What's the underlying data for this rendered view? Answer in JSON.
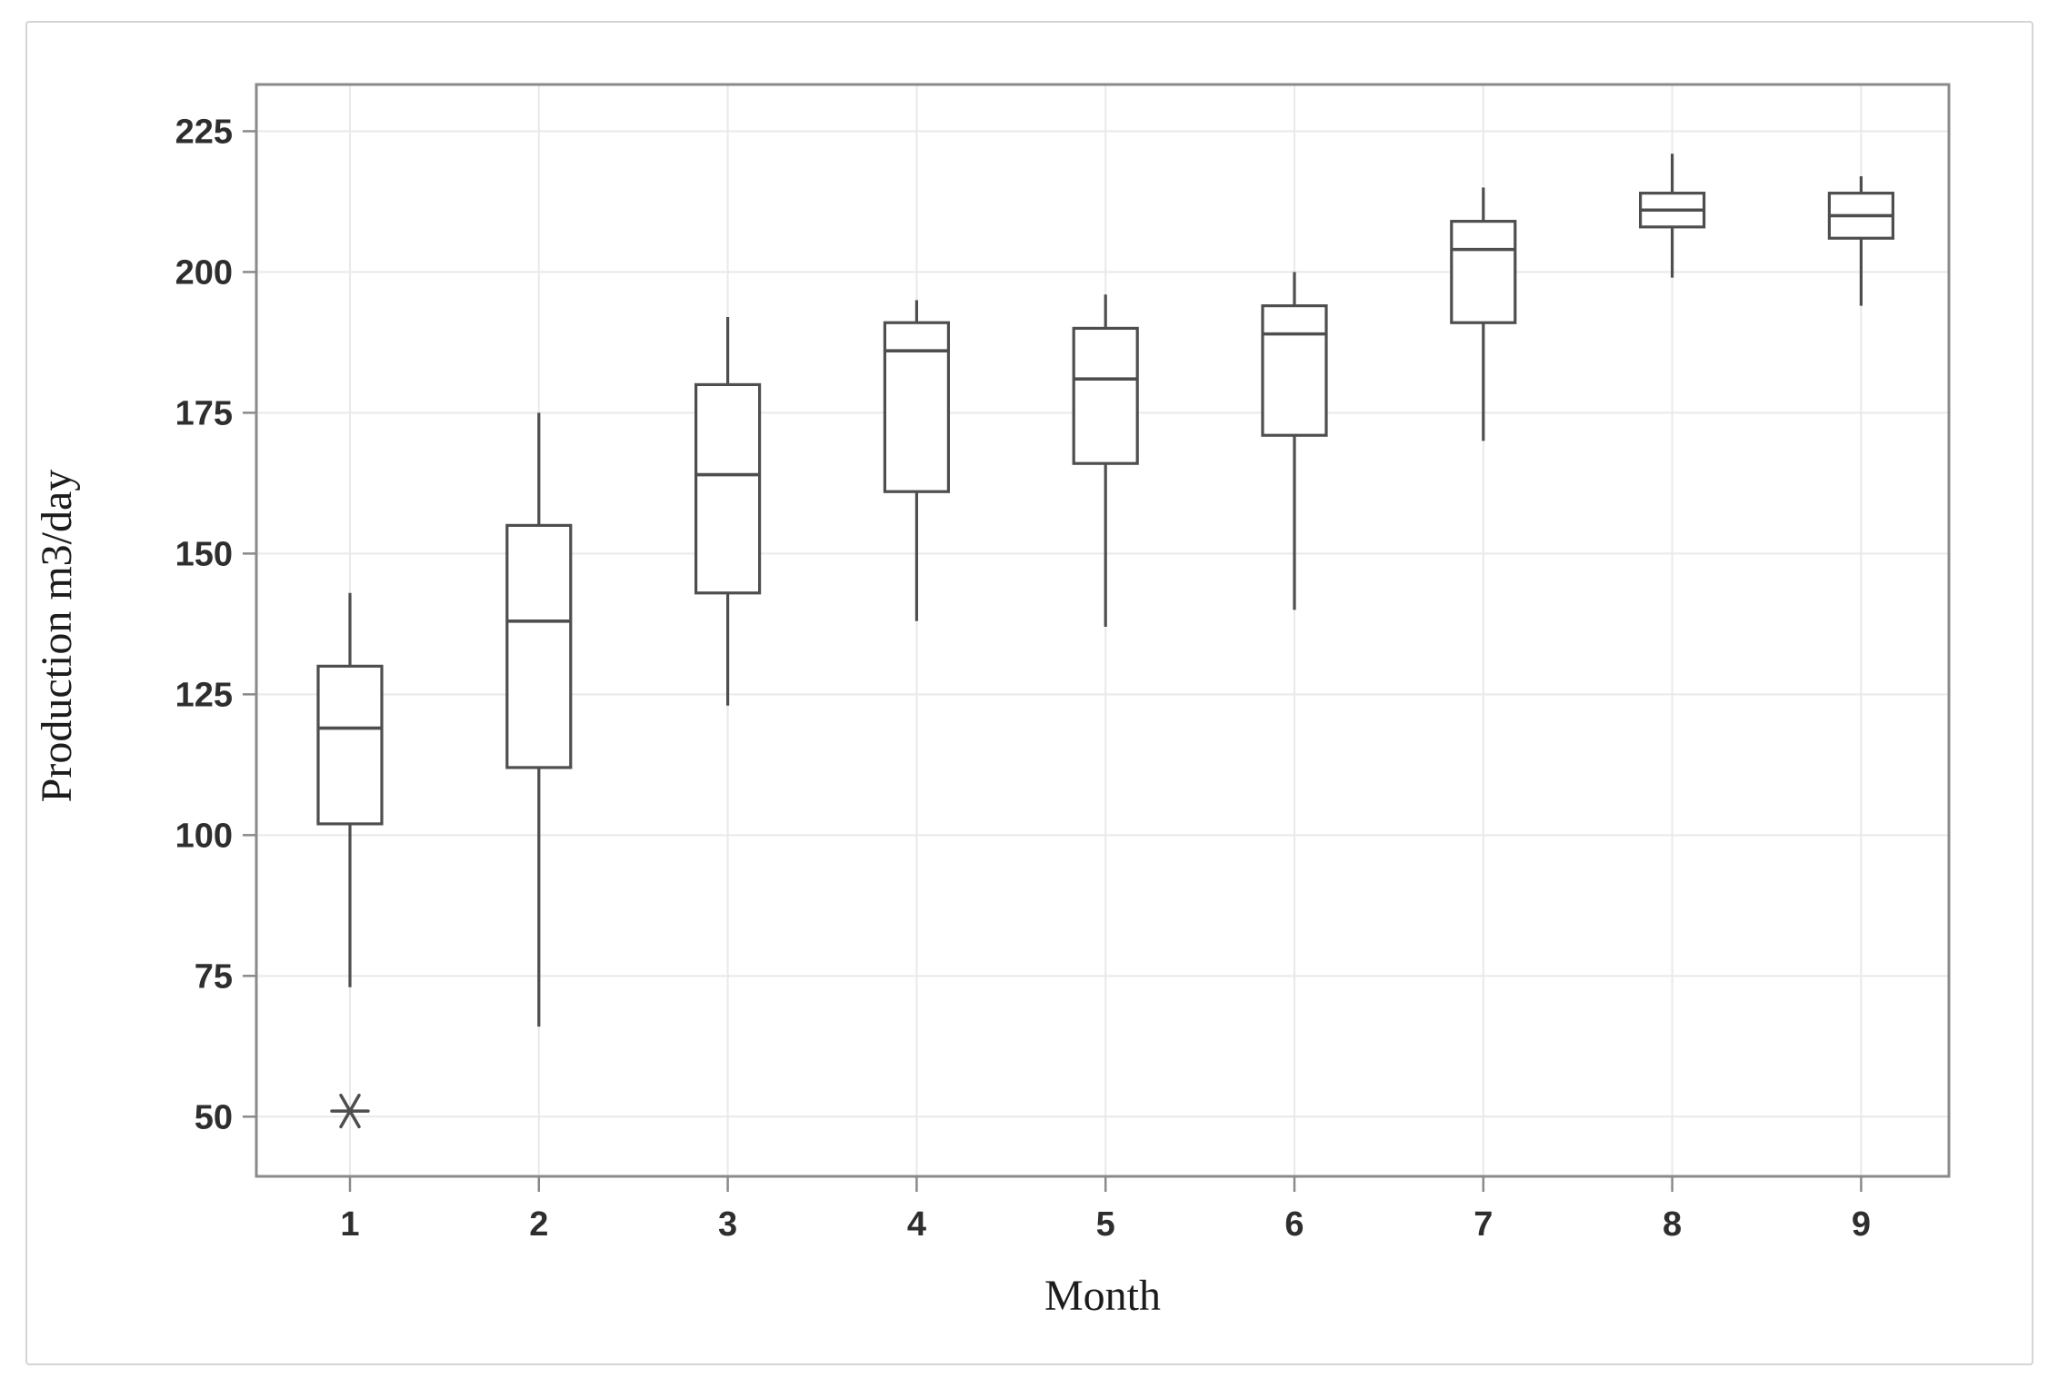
{
  "chart_data": {
    "type": "boxplot",
    "title": "",
    "xlabel": "Month",
    "ylabel": "Production m3/day",
    "categories": [
      "1",
      "2",
      "3",
      "4",
      "5",
      "6",
      "7",
      "8",
      "9"
    ],
    "yticks": [
      50,
      75,
      100,
      125,
      150,
      175,
      200,
      225
    ],
    "ylim": [
      39.4,
      233.3
    ],
    "grid": "both-light-gray",
    "legend": "none",
    "series": [
      {
        "month": "1",
        "whisker_low": 73,
        "q1": 102,
        "median": 119,
        "q3": 130,
        "whisker_high": 143,
        "outliers": [
          51
        ]
      },
      {
        "month": "2",
        "whisker_low": 66,
        "q1": 112,
        "median": 138,
        "q3": 155,
        "whisker_high": 175,
        "outliers": []
      },
      {
        "month": "3",
        "whisker_low": 123,
        "q1": 143,
        "median": 164,
        "q3": 180,
        "whisker_high": 192,
        "outliers": []
      },
      {
        "month": "4",
        "whisker_low": 138,
        "q1": 161,
        "median": 186,
        "q3": 191,
        "whisker_high": 195,
        "outliers": []
      },
      {
        "month": "5",
        "whisker_low": 137,
        "q1": 166,
        "median": 181,
        "q3": 190,
        "whisker_high": 196,
        "outliers": []
      },
      {
        "month": "6",
        "whisker_low": 140,
        "q1": 171,
        "median": 189,
        "q3": 194,
        "whisker_high": 200,
        "outliers": []
      },
      {
        "month": "7",
        "whisker_low": 170,
        "q1": 191,
        "median": 204,
        "q3": 209,
        "whisker_high": 215,
        "outliers": []
      },
      {
        "month": "8",
        "whisker_low": 199,
        "q1": 208,
        "median": 211,
        "q3": 214,
        "whisker_high": 221,
        "outliers": []
      },
      {
        "month": "9",
        "whisker_low": 194,
        "q1": 206,
        "median": 210,
        "q3": 214,
        "whisker_high": 217,
        "outliers": []
      }
    ]
  },
  "colors": {
    "box_stroke": "#4e4e4e",
    "median_stroke": "#4e4e4e",
    "outlier": "#4e4e4e",
    "frame": "#8a8a8a",
    "gridline": "#e9e9e9",
    "tick_mark": "#8a8a8a",
    "tick_label": "#2e2e2e",
    "axis_title": "#1c1c1c",
    "background": "#ffffff",
    "outer_border": "#d5d5d5"
  }
}
